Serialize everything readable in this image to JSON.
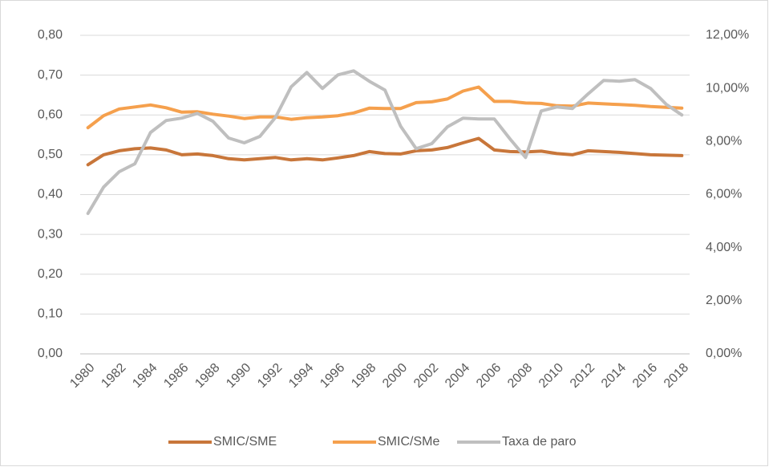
{
  "chart_data": {
    "type": "line",
    "categories": [
      "1980",
      null,
      "1982",
      null,
      "1984",
      null,
      "1986",
      null,
      "1988",
      null,
      "1990",
      null,
      "1992",
      null,
      "1994",
      null,
      "1996",
      null,
      "1998",
      null,
      "2000",
      null,
      "2002",
      null,
      "2004",
      null,
      "2006",
      null,
      "2008",
      null,
      "2010",
      null,
      "2012",
      null,
      "2014",
      null,
      "2016",
      null,
      "2018"
    ],
    "series": [
      {
        "name": "SMIC/SME",
        "color": "#c8763a",
        "values": [
          0.475,
          0.5,
          0.51,
          0.515,
          0.517,
          0.512,
          0.5,
          0.502,
          0.498,
          0.49,
          0.487,
          0.49,
          0.493,
          0.487,
          0.49,
          0.487,
          0.492,
          0.498,
          0.508,
          0.503,
          0.502,
          0.51,
          0.512,
          0.518,
          0.53,
          0.541,
          0.512,
          0.508,
          0.507,
          0.509,
          0.503,
          0.5,
          0.51,
          0.508,
          0.506,
          0.503,
          0.5,
          0.499,
          0.498
        ]
      },
      {
        "name": "SMIC/SMe",
        "color": "#f5a04d",
        "values": [
          0.568,
          0.598,
          0.615,
          0.62,
          0.625,
          0.618,
          0.607,
          0.608,
          0.602,
          0.597,
          0.591,
          0.595,
          0.595,
          0.589,
          0.593,
          0.595,
          0.598,
          0.605,
          0.617,
          0.616,
          0.616,
          0.631,
          0.633,
          0.64,
          0.66,
          0.67,
          0.634,
          0.634,
          0.63,
          0.629,
          0.623,
          0.622,
          0.63,
          0.628,
          0.626,
          0.624,
          0.621,
          0.619,
          0.617
        ]
      },
      {
        "name": "Taxa de paro",
        "color": "#bfbfbf",
        "axis": "y2",
        "values": [
          5.29,
          6.28,
          6.86,
          7.16,
          8.34,
          8.79,
          8.88,
          9.06,
          8.76,
          8.13,
          7.95,
          8.19,
          8.91,
          10.06,
          10.6,
          10.0,
          10.51,
          10.66,
          10.27,
          9.94,
          8.58,
          7.73,
          7.92,
          8.55,
          8.88,
          8.85,
          8.85,
          8.1,
          7.4,
          9.15,
          9.3,
          9.24,
          9.79,
          10.3,
          10.27,
          10.33,
          10.0,
          9.4,
          9.0
        ]
      }
    ],
    "ylim": [
      0,
      0.8
    ],
    "yticks": [
      {
        "value": 0,
        "label": "0,00"
      },
      {
        "value": 0.1,
        "label": "0,10"
      },
      {
        "value": 0.2,
        "label": "0,20"
      },
      {
        "value": 0.3,
        "label": "0,30"
      },
      {
        "value": 0.4,
        "label": "0,40"
      },
      {
        "value": 0.5,
        "label": "0,50"
      },
      {
        "value": 0.6,
        "label": "0,60"
      },
      {
        "value": 0.7,
        "label": "0,70"
      },
      {
        "value": 0.8,
        "label": "0,80"
      }
    ],
    "y2lim": [
      0,
      12
    ],
    "y2ticks": [
      {
        "value": 0,
        "label": "0,00%"
      },
      {
        "value": 2,
        "label": "2,00%"
      },
      {
        "value": 4,
        "label": "4,00%"
      },
      {
        "value": 6,
        "label": "6,00%"
      },
      {
        "value": 8,
        "label": "8,00%"
      },
      {
        "value": 10,
        "label": "10,00%"
      },
      {
        "value": 12,
        "label": "12,00%"
      }
    ],
    "grid": true,
    "legend": "bottom"
  }
}
